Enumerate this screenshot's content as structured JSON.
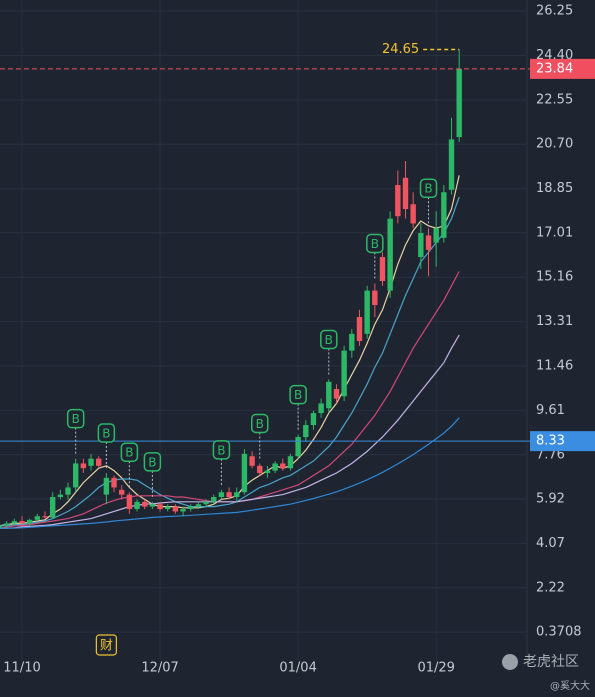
{
  "chart_data": {
    "type": "candlestick",
    "categories": [
      null,
      null,
      null,
      "11/10",
      null,
      null,
      null,
      null,
      null,
      null,
      null,
      null,
      null,
      null,
      null,
      null,
      null,
      null,
      null,
      null,
      null,
      "12/07",
      null,
      null,
      null,
      null,
      null,
      null,
      null,
      null,
      null,
      null,
      null,
      null,
      null,
      null,
      null,
      null,
      null,
      "01/04",
      null,
      null,
      null,
      null,
      null,
      null,
      null,
      null,
      null,
      null,
      null,
      null,
      null,
      null,
      null,
      null,
      null,
      "01/29",
      null,
      null,
      null
    ],
    "open": [
      4.7,
      4.8,
      4.9,
      5.0,
      4.9,
      5.05,
      5.2,
      5.15,
      6.0,
      6.1,
      6.4,
      7.4,
      7.3,
      7.6,
      6.1,
      6.8,
      6.3,
      6.1,
      5.5,
      5.8,
      5.6,
      5.7,
      5.5,
      5.6,
      5.4,
      5.5,
      5.6,
      5.7,
      5.8,
      6.0,
      6.2,
      6.0,
      6.2,
      7.7,
      7.3,
      7.0,
      7.1,
      7.4,
      7.2,
      7.7,
      8.5,
      9.0,
      9.5,
      9.7,
      10.5,
      10.2,
      12.1,
      13.5,
      12.8,
      14.6,
      16.0,
      14.6,
      19.0,
      19.3,
      18.2,
      16.0,
      16.9,
      16.6,
      16.8,
      18.8,
      21.0
    ],
    "high": [
      4.9,
      5.0,
      5.1,
      5.2,
      5.1,
      5.3,
      5.4,
      6.2,
      6.3,
      6.6,
      7.6,
      7.6,
      7.8,
      7.7,
      7.0,
      6.9,
      6.5,
      6.2,
      5.9,
      5.9,
      5.8,
      5.8,
      5.7,
      5.7,
      5.6,
      5.7,
      5.8,
      5.9,
      6.1,
      6.3,
      6.4,
      6.4,
      8.0,
      7.9,
      7.4,
      7.3,
      7.5,
      7.6,
      7.8,
      8.6,
      9.2,
      9.6,
      10.1,
      10.9,
      10.7,
      12.3,
      13.0,
      13.8,
      14.8,
      14.9,
      16.2,
      17.9,
      19.6,
      20.0,
      18.7,
      17.4,
      17.2,
      17.9,
      19.0,
      21.8,
      24.65
    ],
    "low": [
      4.5,
      4.7,
      4.8,
      4.8,
      4.8,
      5.0,
      5.1,
      5.1,
      5.9,
      5.9,
      6.2,
      7.0,
      7.1,
      7.2,
      5.7,
      6.2,
      5.9,
      5.3,
      5.4,
      5.5,
      5.5,
      5.4,
      5.4,
      5.3,
      5.2,
      5.4,
      5.5,
      5.6,
      5.7,
      5.9,
      5.9,
      5.8,
      6.1,
      7.2,
      6.9,
      6.8,
      7.0,
      7.1,
      7.1,
      7.6,
      8.3,
      8.8,
      9.3,
      9.5,
      9.9,
      10.0,
      11.8,
      12.3,
      12.6,
      13.5,
      14.8,
      14.3,
      17.4,
      17.6,
      17.2,
      15.5,
      15.2,
      15.6,
      16.6,
      18.6,
      20.8
    ],
    "close": [
      4.8,
      4.9,
      5.0,
      4.9,
      5.05,
      5.2,
      5.15,
      6.0,
      6.1,
      6.4,
      7.4,
      7.2,
      7.6,
      7.3,
      6.8,
      6.4,
      6.1,
      5.5,
      5.8,
      5.6,
      5.7,
      5.5,
      5.6,
      5.4,
      5.5,
      5.6,
      5.7,
      5.8,
      6.0,
      6.2,
      6.0,
      6.2,
      7.8,
      7.3,
      7.0,
      7.1,
      7.4,
      7.2,
      7.7,
      8.5,
      9.0,
      9.5,
      9.9,
      10.8,
      10.1,
      12.1,
      12.8,
      12.5,
      14.6,
      14.0,
      15.0,
      17.6,
      17.7,
      18.0,
      17.4,
      17.0,
      16.3,
      17.2,
      18.7,
      20.9,
      23.84
    ],
    "up_color": "#2cb867",
    "down_color": "#ef5461",
    "moving_averages": [
      {
        "color": "#e6d3a3",
        "values": [
          4.8,
          4.85,
          4.9,
          4.9,
          4.95,
          5.0,
          5.05,
          5.3,
          5.5,
          5.8,
          6.2,
          6.6,
          6.9,
          7.2,
          7.3,
          7.1,
          6.8,
          6.4,
          6.1,
          5.9,
          5.7,
          5.6,
          5.6,
          5.6,
          5.55,
          5.55,
          5.55,
          5.6,
          5.7,
          5.9,
          5.95,
          6.05,
          6.45,
          6.7,
          6.9,
          7.1,
          7.3,
          7.2,
          7.3,
          7.6,
          7.95,
          8.4,
          8.9,
          9.5,
          9.9,
          10.5,
          11.1,
          11.7,
          12.4,
          13.2,
          13.8,
          14.7,
          15.7,
          16.5,
          17.1,
          17.5,
          17.3,
          17.2,
          17.3,
          18.0,
          19.4
        ]
      },
      {
        "color": "#4aa3c8",
        "values": [
          4.8,
          4.8,
          4.85,
          4.85,
          4.9,
          4.95,
          5.0,
          5.1,
          5.25,
          5.4,
          5.6,
          5.85,
          6.1,
          6.4,
          6.6,
          6.7,
          6.75,
          6.75,
          6.7,
          6.5,
          6.3,
          6.1,
          5.95,
          5.8,
          5.7,
          5.6,
          5.6,
          5.6,
          5.6,
          5.65,
          5.7,
          5.8,
          6.0,
          6.2,
          6.4,
          6.5,
          6.65,
          6.8,
          6.9,
          7.1,
          7.3,
          7.5,
          7.8,
          8.1,
          8.5,
          9.0,
          9.5,
          10.1,
          10.7,
          11.4,
          12.0,
          12.8,
          13.6,
          14.4,
          15.1,
          15.8,
          16.2,
          16.6,
          17.0,
          17.6,
          18.5
        ]
      },
      {
        "color": "#d2477a",
        "values": [
          4.7,
          4.75,
          4.8,
          4.8,
          4.85,
          4.9,
          4.95,
          5.0,
          5.05,
          5.1,
          5.2,
          5.3,
          5.45,
          5.6,
          5.75,
          5.85,
          5.95,
          6.0,
          6.05,
          6.05,
          6.05,
          6.05,
          6.05,
          6.0,
          6.0,
          5.95,
          5.9,
          5.85,
          5.8,
          5.8,
          5.8,
          5.8,
          5.85,
          5.9,
          6.0,
          6.1,
          6.2,
          6.3,
          6.4,
          6.5,
          6.7,
          6.9,
          7.1,
          7.3,
          7.6,
          7.9,
          8.2,
          8.6,
          9.0,
          9.4,
          9.9,
          10.4,
          11.0,
          11.6,
          12.2,
          12.7,
          13.2,
          13.7,
          14.2,
          14.8,
          15.4
        ]
      },
      {
        "color": "#c3b3e8",
        "values": [
          4.7,
          4.7,
          4.72,
          4.75,
          4.78,
          4.8,
          4.82,
          4.85,
          4.9,
          4.95,
          5.0,
          5.05,
          5.1,
          5.2,
          5.3,
          5.4,
          5.5,
          5.6,
          5.65,
          5.7,
          5.72,
          5.75,
          5.78,
          5.8,
          5.8,
          5.8,
          5.8,
          5.8,
          5.8,
          5.8,
          5.8,
          5.8,
          5.85,
          5.9,
          5.95,
          6.0,
          6.05,
          6.1,
          6.2,
          6.3,
          6.4,
          6.55,
          6.7,
          6.85,
          7.0,
          7.2,
          7.4,
          7.65,
          7.9,
          8.2,
          8.5,
          8.85,
          9.2,
          9.6,
          10.0,
          10.4,
          10.8,
          11.2,
          11.6,
          12.2,
          12.75
        ]
      },
      {
        "color": "#2f86d6",
        "values": [
          4.7,
          4.7,
          4.7,
          4.72,
          4.74,
          4.76,
          4.78,
          4.8,
          4.82,
          4.84,
          4.86,
          4.88,
          4.9,
          4.93,
          4.96,
          5.0,
          5.03,
          5.06,
          5.09,
          5.12,
          5.15,
          5.17,
          5.19,
          5.2,
          5.22,
          5.24,
          5.26,
          5.28,
          5.3,
          5.32,
          5.34,
          5.36,
          5.4,
          5.45,
          5.5,
          5.55,
          5.6,
          5.65,
          5.7,
          5.78,
          5.86,
          5.94,
          6.03,
          6.12,
          6.22,
          6.33,
          6.45,
          6.58,
          6.72,
          6.87,
          7.03,
          7.2,
          7.38,
          7.57,
          7.77,
          7.98,
          8.2,
          8.43,
          8.67,
          8.95,
          9.3
        ]
      }
    ],
    "ylim": [
      -0.79,
      26.71
    ],
    "yticks": [
      26.25,
      {
        "value": 24.4,
        "label": "24.40"
      },
      22.55,
      {
        "value": 20.7,
        "label": "20.70"
      },
      18.85,
      17.01,
      15.16,
      13.31,
      11.46,
      9.61,
      7.76,
      5.92,
      4.07,
      2.22,
      0.3708
    ],
    "grid": true,
    "price_lines": [
      {
        "value": 23.84,
        "color": "#ef4f5e",
        "dashed": true
      },
      {
        "value": 8.33,
        "color": "#3a8de0",
        "dashed": false
      }
    ],
    "high_marker": {
      "index": 60,
      "color": "#f2c232"
    },
    "signals": {
      "label": "B",
      "color": "#2cb867",
      "indices": [
        10,
        14,
        17,
        20,
        29,
        34,
        39,
        43,
        49,
        56
      ]
    },
    "events": [
      {
        "index": 14,
        "label": "财",
        "color": "#f2c232"
      }
    ],
    "watermark": "老虎社区",
    "author": "@奚大大"
  }
}
